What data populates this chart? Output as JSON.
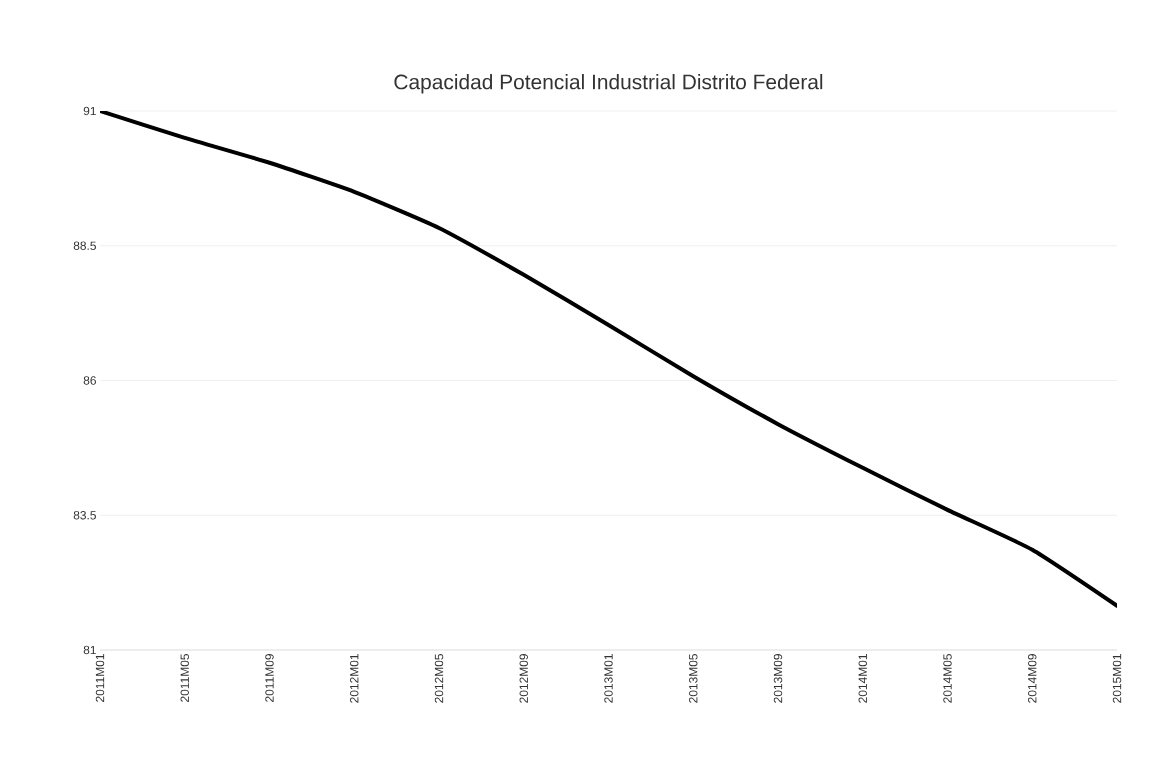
{
  "chart_data": {
    "type": "line",
    "title": "Capacidad Potencial Industrial Distrito Federal",
    "categories": [
      "2011M01",
      "2011M05",
      "2011M09",
      "2012M01",
      "2012M05",
      "2012M09",
      "2013M01",
      "2013M05",
      "2013M09",
      "2014M01",
      "2014M05",
      "2014M09",
      "2015M01"
    ],
    "values": [
      91.0,
      90.5,
      90.04,
      89.5,
      88.83,
      87.96,
      87.03,
      86.08,
      85.19,
      84.38,
      83.6,
      82.86,
      81.82
    ],
    "color": "#000000",
    "ylim": [
      81,
      91
    ],
    "yticks": [
      81,
      83.5,
      86,
      88.5,
      91
    ],
    "grid": "y",
    "marker": "none",
    "line_style": "solid"
  }
}
